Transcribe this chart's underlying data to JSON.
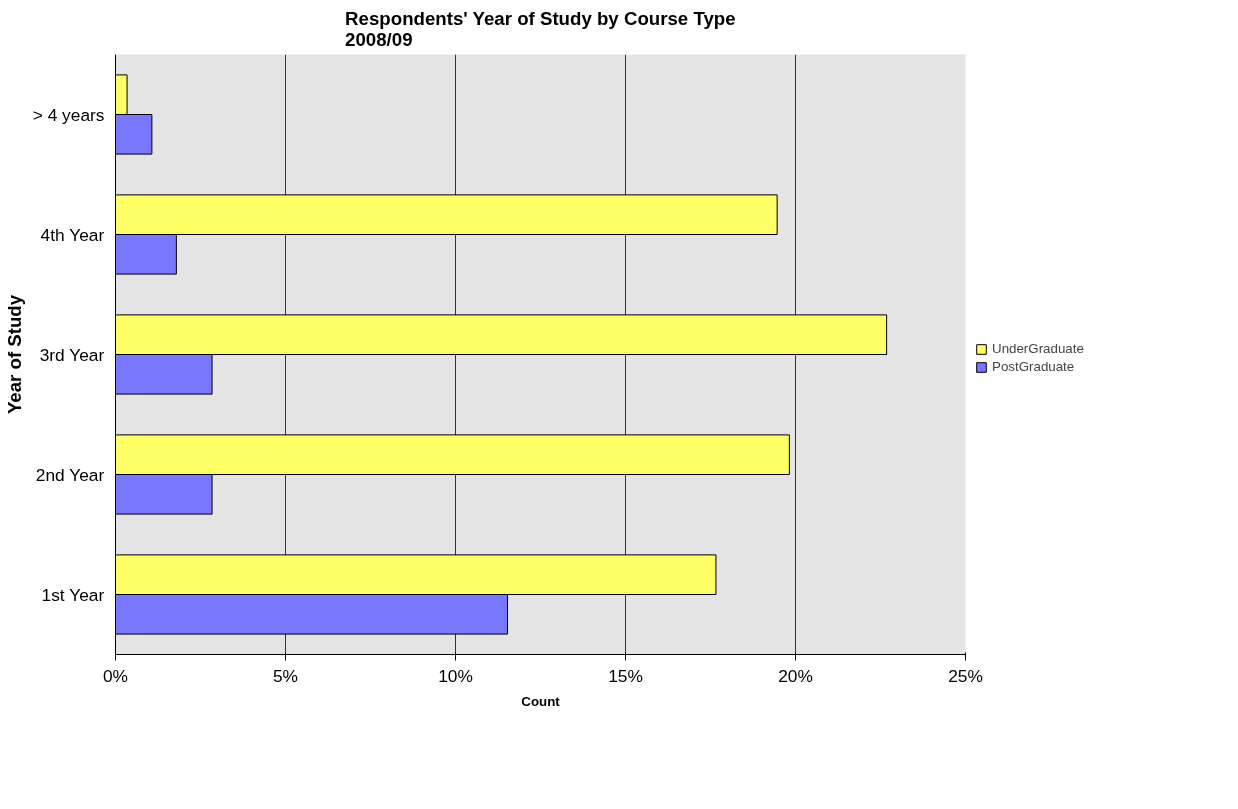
{
  "chart_data": {
    "type": "bar",
    "orientation": "horizontal",
    "title": "Respondents' Year of Study by Course Type\n2008/09",
    "xlabel": "Count",
    "ylabel": "Year of Study",
    "categories": [
      "> 4 years",
      "4th Year",
      "3rd Year",
      "2nd Year",
      "1st Year"
    ],
    "series": [
      {
        "name": "UnderGraduate",
        "color": "#ffff66",
        "values": [
          0.34,
          19.46,
          22.68,
          19.82,
          17.66
        ]
      },
      {
        "name": "PostGraduate",
        "color": "#7777ff",
        "values": [
          1.07,
          1.79,
          2.84,
          2.84,
          11.53
        ]
      }
    ],
    "xlim": [
      0,
      25
    ],
    "xticks": [
      {
        "value": 0,
        "label": "0%"
      },
      {
        "value": 5,
        "label": "5%"
      },
      {
        "value": 10,
        "label": "10%"
      },
      {
        "value": 15,
        "label": "15%"
      },
      {
        "value": 20,
        "label": "20%"
      },
      {
        "value": 25,
        "label": "25%"
      }
    ],
    "grid": "x",
    "legend": "right"
  }
}
